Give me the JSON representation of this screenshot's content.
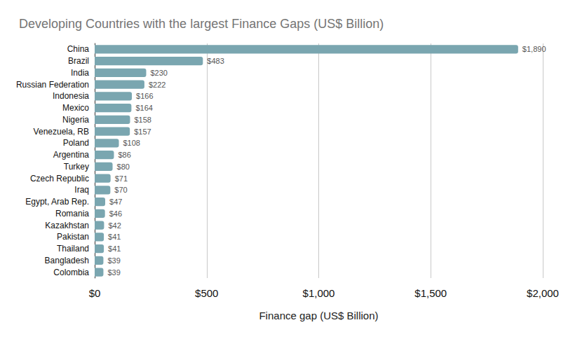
{
  "chart_data": {
    "type": "bar",
    "orientation": "horizontal",
    "title": "Developing Countries with the largest Finance Gaps (US$ Billion)",
    "x_label": "Finance gap (US$ Billion)",
    "categories": [
      "China",
      "Brazil",
      "India",
      "Russian Federation",
      "Indonesia",
      "Mexico",
      "Nigeria",
      "Venezuela, RB",
      "Poland",
      "Argentina",
      "Turkey",
      "Czech Republic",
      "Iraq",
      "Egypt, Arab Rep.",
      "Romania",
      "Kazakhstan",
      "Pakistan",
      "Thailand",
      "Bangladesh",
      "Colombia"
    ],
    "values": [
      1890,
      483,
      230,
      222,
      166,
      164,
      158,
      157,
      108,
      86,
      80,
      71,
      70,
      47,
      46,
      42,
      41,
      41,
      39,
      39
    ],
    "value_labels": [
      "$1,890",
      "$483",
      "$230",
      "$222",
      "$166",
      "$164",
      "$158",
      "$157",
      "$108",
      "$86",
      "$80",
      "$71",
      "$70",
      "$47",
      "$46",
      "$42",
      "$41",
      "$41",
      "$39",
      "$39"
    ],
    "color": "#7aa6b0",
    "xlim": [
      0,
      2000
    ],
    "xticks": [
      {
        "value": 0,
        "label": "$0"
      },
      {
        "value": 500,
        "label": "$500"
      },
      {
        "value": 1000,
        "label": "$1,000"
      },
      {
        "value": 1500,
        "label": "$1,500"
      },
      {
        "value": 2000,
        "label": "$2,000"
      }
    ],
    "grid": true,
    "data_labels": true
  }
}
